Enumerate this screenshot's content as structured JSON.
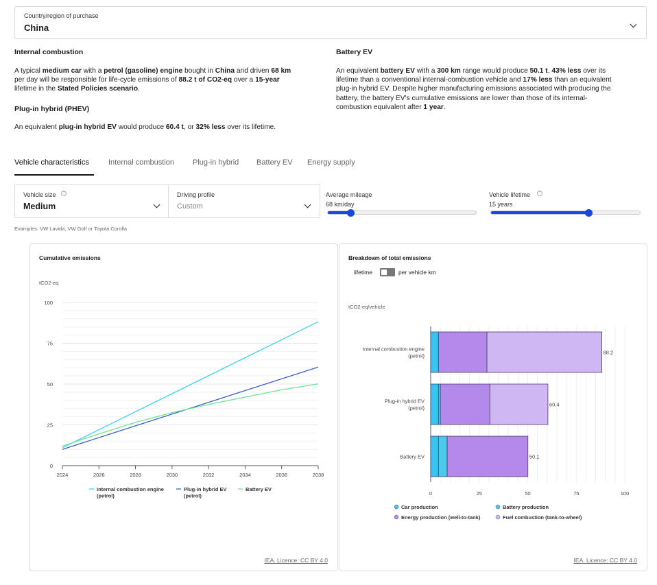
{
  "country_select": {
    "label": "Country/region of purchase",
    "value": "China"
  },
  "ice_section": {
    "heading": "Internal combustion",
    "p1": "A typical ",
    "p2": "medium car",
    "p3": " with a ",
    "p4": "petrol (gasoline) engine",
    "p5": " bought in ",
    "p6": "China",
    "p7": " and driven ",
    "p8": "68 km",
    "p9": "per day will be responsible for life-cycle emissions of ",
    "p10": "88.2 t of CO2-eq",
    "p11": " over a ",
    "p12": "15-year",
    "p13": "lifetime in the ",
    "p14": "Stated Policies scenario",
    "p15": "."
  },
  "phev_section": {
    "heading": "Plug-in hybrid (PHEV)",
    "p1": "An equivalent ",
    "p2": "plug-in hybrid EV",
    "p3": " would produce ",
    "p4": "60.4 t",
    "p5": ", or ",
    "p6": "32% less",
    "p7": " over its lifetime."
  },
  "bev_section": {
    "heading": "Battery EV",
    "l1a": "An equivalent ",
    "l1b": "battery EV",
    "l1c": " with a ",
    "l1d": "300 km",
    "l1e": " range would produce ",
    "l1f": "50.1 t",
    "l1g": ", ",
    "l1h": "43% less",
    "l1i": " over its",
    "l2a": "lifetime than a conventional internal-combustion vehicle and ",
    "l2b": "17% less",
    "l2c": " than an equivalent",
    "l3": "plug-in hybrid EV. Despite higher manufacturing emissions associated with producing the",
    "l4": "battery, the battery EV's cumulative emissions are lower than those of its internal-",
    "l5a": "combustion equivalent after ",
    "l5b": "1 year",
    "l5c": "."
  },
  "tabs": [
    "Vehicle characteristics",
    "Internal combustion",
    "Plug-in hybrid",
    "Battery EV",
    "Energy supply"
  ],
  "controls": {
    "vehicle_size": {
      "label": "Vehicle size",
      "value": "Medium"
    },
    "driving_profile": {
      "label": "Driving profile",
      "value": "Custom"
    },
    "mileage": {
      "label": "Average mileage",
      "value": "68 km/day",
      "fraction": 0.155
    },
    "lifetime": {
      "label": "Vehicle lifetime",
      "value": "15 years",
      "fraction": 0.655
    },
    "examples": "Examples: VW Lavida, VW Golf or Toyota Corolla"
  },
  "colors": {
    "ice": "#3ed0f0",
    "phev": "#3a5fc8",
    "bev": "#6ce58f",
    "car_production": "#38c4ee",
    "battery_production": "#4fc9ea",
    "energy_production": "#b389ec",
    "fuel_combustion": "#cfb7f4"
  },
  "chart_data": [
    {
      "type": "line",
      "title": "Cumulative emissions",
      "ylabel": "tCO2-eq",
      "x_ticks": [
        "2024",
        "2026",
        "2028",
        "2030",
        "2032",
        "2034",
        "2036",
        "2038"
      ],
      "y_ticks": [
        "0",
        "25",
        "50",
        "75",
        "100"
      ],
      "xlim": [
        2024,
        2038
      ],
      "ylim": [
        0,
        100
      ],
      "grid": true,
      "legend_position": "bottom",
      "series": [
        {
          "name": "Internal combustion engine (petrol)",
          "x": [
            2024,
            2038
          ],
          "values": [
            11,
            88.2
          ]
        },
        {
          "name": "Plug-in hybrid EV (petrol)",
          "x": [
            2024,
            2038
          ],
          "values": [
            10,
            60.4
          ]
        },
        {
          "name": "Battery EV",
          "x": [
            2024,
            2026,
            2028,
            2030,
            2032,
            2034,
            2036,
            2038
          ],
          "values": [
            12,
            19.5,
            26.5,
            32.5,
            37.5,
            42,
            46.5,
            50.1
          ]
        }
      ]
    },
    {
      "type": "bar",
      "orientation": "horizontal",
      "stacked": true,
      "title": "Breakdown of total emissions",
      "toggle": {
        "left": "lifetime",
        "right": "per vehicle km"
      },
      "ylabel": "tCO2-eq/vehicle",
      "categories": [
        "Internal combustion engine (petrol)",
        "Plug-in hybrid EV (petrol)",
        "Battery EV"
      ],
      "category_lines": [
        [
          "Internal combustion engine",
          "(petrol)"
        ],
        [
          "Plug-in hybrid EV",
          "(petrol)"
        ],
        [
          "Battery EV"
        ]
      ],
      "x_ticks": [
        "0",
        "25",
        "50",
        "75",
        "100"
      ],
      "xlim": [
        0,
        100
      ],
      "totals": [
        "88.2",
        "60.4",
        "50.1"
      ],
      "legend_position": "bottom",
      "series": [
        {
          "name": "Car production",
          "values": [
            4,
            4,
            4
          ]
        },
        {
          "name": "Battery production",
          "values": [
            0,
            1,
            4.5
          ]
        },
        {
          "name": "Energy production (well-to-tank)",
          "values": [
            25,
            25.5,
            41.6
          ]
        },
        {
          "name": "Fuel combustion (tank-to-wheel)",
          "values": [
            59.2,
            29.9,
            0
          ]
        }
      ]
    }
  ],
  "credit": "IEA. Licence: CC BY 4.0"
}
